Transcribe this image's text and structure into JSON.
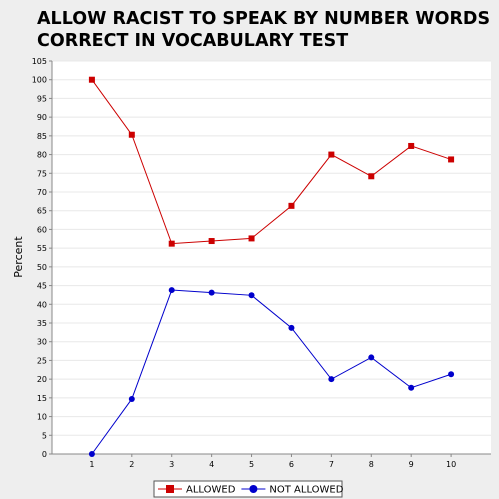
{
  "chart_data": {
    "type": "line",
    "title": "ALLOW RACIST TO SPEAK BY NUMBER WORDS\nCORRECT IN VOCABULARY TEST",
    "xlabel": "",
    "ylabel": "Percent",
    "x": [
      1,
      2,
      3,
      4,
      5,
      6,
      7,
      8,
      9,
      10
    ],
    "xlim": [
      0,
      11
    ],
    "ylim": [
      0,
      105
    ],
    "yticks": [
      0,
      5,
      10,
      15,
      20,
      25,
      30,
      35,
      40,
      45,
      50,
      55,
      60,
      65,
      70,
      75,
      80,
      85,
      90,
      95,
      100,
      105
    ],
    "grid": true,
    "legend_position": "bottom",
    "series": [
      {
        "name": "ALLOWED",
        "color": "#cc0000",
        "marker": "square",
        "values": [
          100,
          85.3,
          56.2,
          56.9,
          57.6,
          66.3,
          80.0,
          74.2,
          82.3,
          78.7
        ]
      },
      {
        "name": "NOT ALLOWED",
        "color": "#0000cc",
        "marker": "circle",
        "values": [
          0,
          14.7,
          43.8,
          43.1,
          42.4,
          33.7,
          20.0,
          25.8,
          17.7,
          21.3
        ]
      }
    ]
  }
}
